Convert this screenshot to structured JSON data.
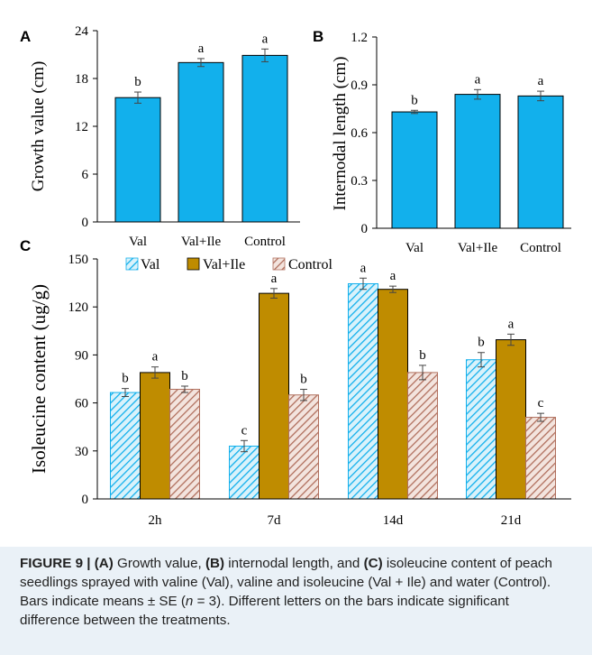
{
  "chart_data": [
    {
      "panel": "A",
      "type": "bar",
      "categories": [
        "Val",
        "Val+Ile",
        "Control"
      ],
      "values": [
        15.6,
        20.0,
        20.9
      ],
      "errors": [
        0.7,
        0.5,
        0.8
      ],
      "significance": [
        "b",
        "a",
        "a"
      ],
      "ylabel": "Growth value (cm)",
      "ylim": [
        0,
        24
      ],
      "yticks": [
        "0",
        "6",
        "12",
        "18",
        "24"
      ],
      "color": "#12b0ec"
    },
    {
      "panel": "B",
      "type": "bar",
      "categories": [
        "Val",
        "Val+Ile",
        "Control"
      ],
      "values": [
        0.73,
        0.84,
        0.83
      ],
      "errors": [
        0.01,
        0.03,
        0.03
      ],
      "significance": [
        "b",
        "a",
        "a"
      ],
      "ylabel": "Internodal length (cm)",
      "ylim": [
        0,
        1.2
      ],
      "yticks": [
        "0",
        "0.3",
        "0.6",
        "0.9",
        "1.2"
      ],
      "color": "#12b0ec"
    },
    {
      "panel": "C",
      "type": "bar",
      "categories": [
        "2h",
        "7d",
        "14d",
        "21d"
      ],
      "ylabel": "Isoleucine content (ug/g)",
      "ylim": [
        0,
        150
      ],
      "yticks": [
        "0",
        "30",
        "60",
        "90",
        "120",
        "150"
      ],
      "legend_position": "top",
      "series": [
        {
          "name": "Val",
          "values": [
            66.5,
            33,
            134.5,
            87
          ],
          "errors": [
            2.5,
            3.5,
            3.5,
            4.5
          ],
          "significance": [
            "b",
            "c",
            "a",
            "b"
          ],
          "color": "#12b0ec",
          "pattern": "hatch"
        },
        {
          "name": "Val+Ile",
          "values": [
            79,
            128.5,
            131,
            99.5
          ],
          "errors": [
            3.5,
            3,
            2,
            3.5
          ],
          "significance": [
            "a",
            "a",
            "a",
            "a"
          ],
          "color": "#bf8c00",
          "pattern": "solid"
        },
        {
          "name": "Control",
          "values": [
            68.5,
            65,
            79,
            51
          ],
          "errors": [
            2,
            3.5,
            4.5,
            2.5
          ],
          "significance": [
            "b",
            "b",
            "b",
            "c"
          ],
          "color": "#b06f5d",
          "pattern": "hatch"
        }
      ]
    }
  ],
  "caption": {
    "label": "FIGURE 9 | ",
    "text_html": "<b>(A)</b> Growth value, <b>(B)</b> internodal length, and <b>(C)</b> isoleucine content of peach seedlings sprayed with valine (Val), valine and isoleucine (Val + Ile) and water (Control). Bars indicate means ± SE (<i>n</i> = 3). Different letters on the bars indicate significant difference between the treatments."
  }
}
